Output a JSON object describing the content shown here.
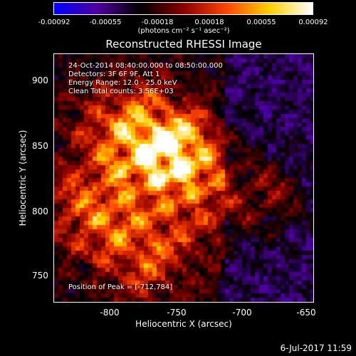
{
  "title": "Reconstructed RHESSI Image",
  "colorbar": {
    "ticks": [
      "-0.00092",
      "-0.00055",
      "-0.00018",
      "0.00018",
      "0.00055",
      "0.00092"
    ],
    "units": "(photons cm⁻² s⁻¹ asec⁻²)",
    "colors": [
      "#0000ff",
      "#5000a0",
      "#000000",
      "#8b0000",
      "#ff4500",
      "#ffd000",
      "#ffffff"
    ]
  },
  "annotations": {
    "time_range": "24-Oct-2014 08:40:00.000 to 08:50:00.000",
    "detectors": "Detectors: 3F 6F 9F, Att 1",
    "energy": "Energy Range: 12.0 - 25.0 keV",
    "clean": "Clean    Total counts: 3.56E+03",
    "peak": "Position of Peak = [-712,784]"
  },
  "axes": {
    "xlabel": "Heliocentric X (arcsec)",
    "ylabel": "Heliocentric Y (arcsec)",
    "xticks": [
      "-800",
      "-750",
      "-700",
      "-650"
    ],
    "yticks": [
      "900",
      "850",
      "800",
      "750"
    ],
    "xlim": [
      -840,
      -645
    ],
    "ylim": [
      728,
      922
    ]
  },
  "footer": "6-Jul-2017 11:59"
}
